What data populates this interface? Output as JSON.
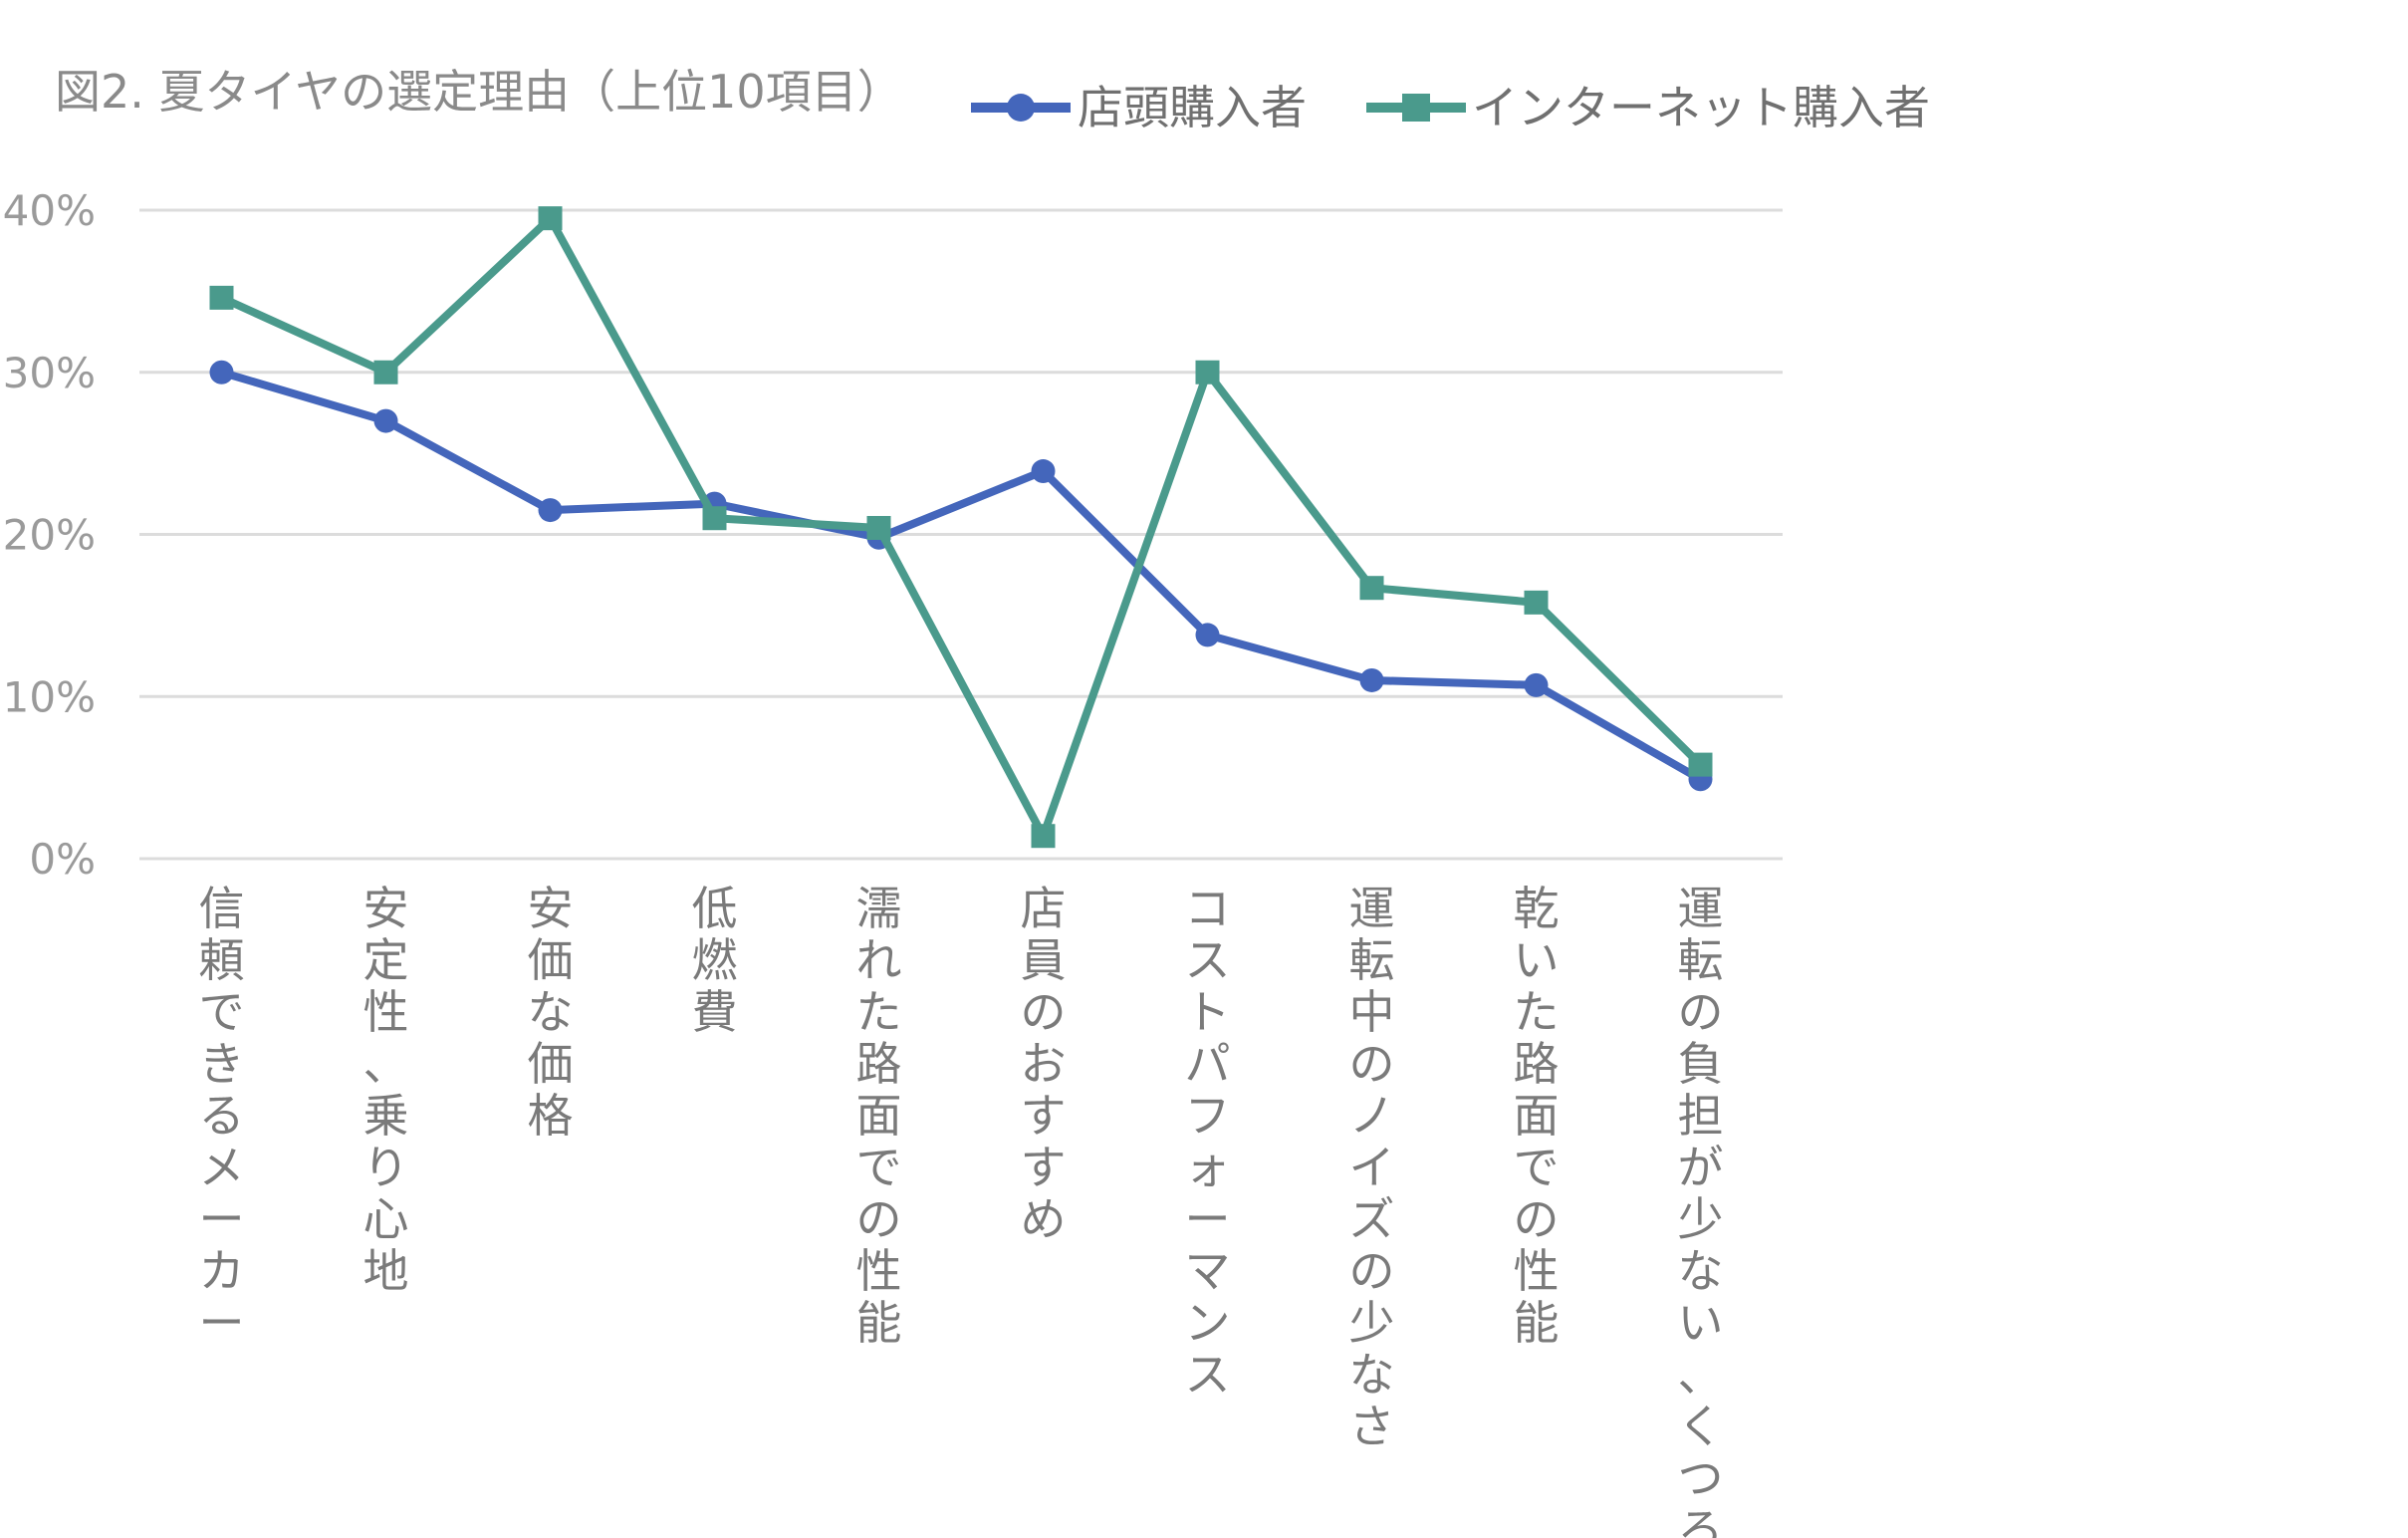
{
  "chart_data": {
    "type": "line",
    "title": "図2. 夏タイヤの選定理由（上位10項目）",
    "xlabel": "",
    "ylabel": "",
    "ylim": [
      0,
      40
    ],
    "yticks": [
      "0%",
      "10%",
      "20%",
      "30%",
      "40%"
    ],
    "grid": true,
    "legend_position": "top",
    "categories": [
      "信頼できるメーカー",
      "安定性、乗り心地",
      "安価な価格",
      "低燃費",
      "濡れた路面での性能",
      "店員のおすすめ",
      "コストパフォーマンス",
      "運転中のノイズの少なさ",
      "乾いた路面での性能",
      "運転の負担が少ない、くつろぎ"
    ],
    "series": [
      {
        "name": "店頭購入者",
        "color": "#4466bb",
        "marker": "circle",
        "values": [
          30.0,
          27.0,
          21.5,
          21.9,
          19.8,
          23.9,
          13.8,
          11.0,
          10.7,
          4.9
        ]
      },
      {
        "name": "インターネット購入者",
        "color": "#4a9a8c",
        "marker": "square",
        "values": [
          34.6,
          30.0,
          39.5,
          21.0,
          20.4,
          1.4,
          30.0,
          16.7,
          15.8,
          5.8
        ]
      }
    ]
  }
}
